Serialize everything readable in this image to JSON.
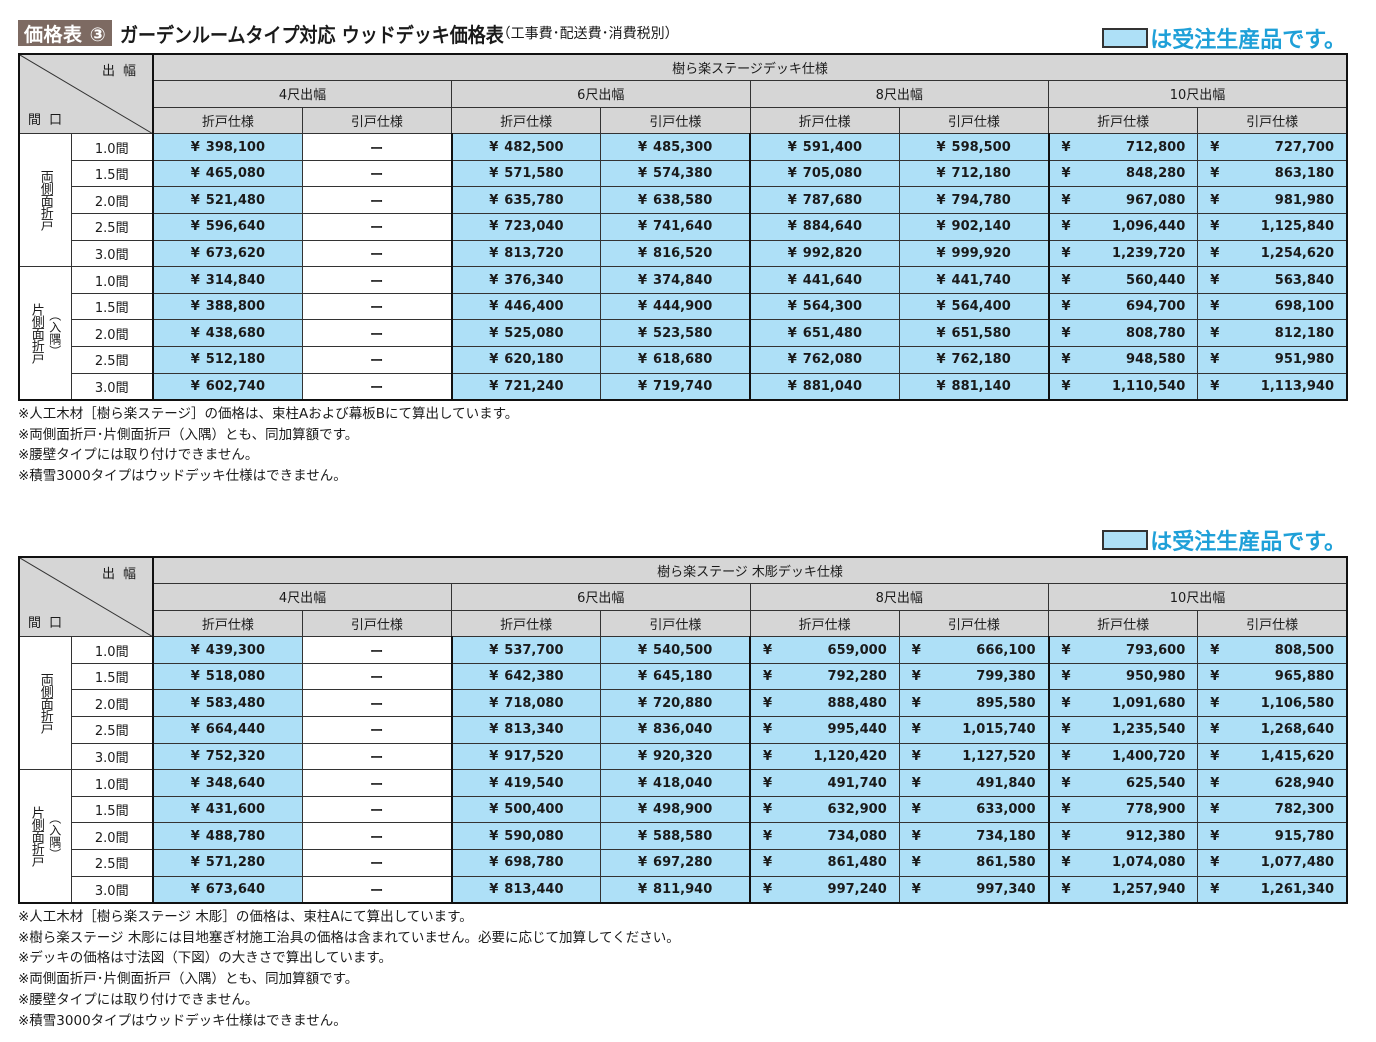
{
  "header": {
    "badge": "価格表 ③",
    "title": "ガーデンルームタイプ対応 ウッドデッキ価格表",
    "subtitle": "（工事費･配送費･消費税別）"
  },
  "legend": {
    "text": "は受注生産品です。",
    "color": "#aee0f7"
  },
  "common": {
    "corner_top": "出幅",
    "corner_bottom": "間口",
    "widths": [
      "4尺出幅",
      "6尺出幅",
      "8尺出幅",
      "10尺出幅"
    ],
    "specs": [
      "折戸仕様",
      "引戸仕様"
    ],
    "groups": [
      {
        "label": "両側面折戸",
        "sub": ""
      },
      {
        "label": "片側面折戸",
        "sub": "（入隅）"
      }
    ],
    "spans": [
      "1.0間",
      "1.5間",
      "2.0間",
      "2.5間",
      "3.0間"
    ],
    "dash": "ー"
  },
  "tables": [
    {
      "title": "樹ら楽ステージデッキ仕様",
      "rows": [
        [
          "398,100",
          "ー",
          "482,500",
          "485,300",
          "591,400",
          "598,500",
          "712,800",
          "727,700"
        ],
        [
          "465,080",
          "ー",
          "571,580",
          "574,380",
          "705,080",
          "712,180",
          "848,280",
          "863,180"
        ],
        [
          "521,480",
          "ー",
          "635,780",
          "638,580",
          "787,680",
          "794,780",
          "967,080",
          "981,980"
        ],
        [
          "596,640",
          "ー",
          "723,040",
          "741,640",
          "884,640",
          "902,140",
          "1,096,440",
          "1,125,840"
        ],
        [
          "673,620",
          "ー",
          "813,720",
          "816,520",
          "992,820",
          "999,920",
          "1,239,720",
          "1,254,620"
        ],
        [
          "314,840",
          "ー",
          "376,340",
          "374,840",
          "441,640",
          "441,740",
          "560,440",
          "563,840"
        ],
        [
          "388,800",
          "ー",
          "446,400",
          "444,900",
          "564,300",
          "564,400",
          "694,700",
          "698,100"
        ],
        [
          "438,680",
          "ー",
          "525,080",
          "523,580",
          "651,480",
          "651,580",
          "808,780",
          "812,180"
        ],
        [
          "512,180",
          "ー",
          "620,180",
          "618,680",
          "762,080",
          "762,180",
          "948,580",
          "951,980"
        ],
        [
          "602,740",
          "ー",
          "721,240",
          "719,740",
          "881,040",
          "881,140",
          "1,110,540",
          "1,113,940"
        ]
      ],
      "notes": [
        "※人工木材［樹ら楽ステージ］の価格は、束柱Aおよび幕板Bにて算出しています。",
        "※両側面折戸･片側面折戸（入隅）とも、同加算額です。",
        "※腰壁タイプには取り付けできません。",
        "※積雪3000タイプはウッドデッキ仕様はできません。"
      ]
    },
    {
      "title": "樹ら楽ステージ 木彫デッキ仕様",
      "rows": [
        [
          "439,300",
          "ー",
          "537,700",
          "540,500",
          "659,000",
          "666,100",
          "793,600",
          "808,500"
        ],
        [
          "518,080",
          "ー",
          "642,380",
          "645,180",
          "792,280",
          "799,380",
          "950,980",
          "965,880"
        ],
        [
          "583,480",
          "ー",
          "718,080",
          "720,880",
          "888,480",
          "895,580",
          "1,091,680",
          "1,106,580"
        ],
        [
          "664,440",
          "ー",
          "813,340",
          "836,040",
          "995,440",
          "1,015,740",
          "1,235,540",
          "1,268,640"
        ],
        [
          "752,320",
          "ー",
          "917,520",
          "920,320",
          "1,120,420",
          "1,127,520",
          "1,400,720",
          "1,415,620"
        ],
        [
          "348,640",
          "ー",
          "419,540",
          "418,040",
          "491,740",
          "491,840",
          "625,540",
          "628,940"
        ],
        [
          "431,600",
          "ー",
          "500,400",
          "498,900",
          "632,900",
          "633,000",
          "778,900",
          "782,300"
        ],
        [
          "488,780",
          "ー",
          "590,080",
          "588,580",
          "734,080",
          "734,180",
          "912,380",
          "915,780"
        ],
        [
          "571,280",
          "ー",
          "698,780",
          "697,280",
          "861,480",
          "861,580",
          "1,074,080",
          "1,077,480"
        ],
        [
          "673,640",
          "ー",
          "813,440",
          "811,940",
          "997,240",
          "997,340",
          "1,257,940",
          "1,261,340"
        ]
      ],
      "notes": [
        "※人工木材［樹ら楽ステージ 木彫］の価格は、束柱Aにて算出しています。",
        "※樹ら楽ステージ 木彫には目地塞ぎ材施工治具の価格は含まれていません。必要に応じて加算してください。",
        "※デッキの価格は寸法図（下図）の大きさで算出しています。",
        "※両側面折戸･片側面折戸（入隅）とも、同加算額です。",
        "※腰壁タイプには取り付けできません。",
        "※積雪3000タイプはウッドデッキ仕様はできません。"
      ]
    }
  ],
  "yen": "¥"
}
